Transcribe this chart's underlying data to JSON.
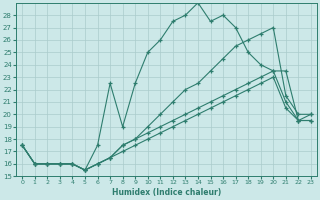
{
  "xlabel": "Humidex (Indice chaleur)",
  "background_color": "#cce8e8",
  "grid_color": "#aacccc",
  "line_color": "#2e7d6e",
  "xlim": [
    -0.5,
    23.5
  ],
  "ylim": [
    15,
    29
  ],
  "xticks": [
    0,
    1,
    2,
    3,
    4,
    5,
    6,
    7,
    8,
    9,
    10,
    11,
    12,
    13,
    14,
    15,
    16,
    17,
    18,
    19,
    20,
    21,
    22,
    23
  ],
  "yticks": [
    15,
    16,
    17,
    18,
    19,
    20,
    21,
    22,
    23,
    24,
    25,
    26,
    27,
    28
  ],
  "lines": [
    [
      17.5,
      16.0,
      16.0,
      16.0,
      16.0,
      15.5,
      17.5,
      22.5,
      19.0,
      22.5,
      25.0,
      26.0,
      27.5,
      28.0,
      29.0,
      27.5,
      28.0,
      27.0,
      25.0,
      24.0,
      23.5,
      23.5,
      19.5,
      20.0
    ],
    [
      17.5,
      16.0,
      16.0,
      16.0,
      16.0,
      15.5,
      16.0,
      16.5,
      17.5,
      18.0,
      19.0,
      20.0,
      21.0,
      22.0,
      22.5,
      23.5,
      24.5,
      25.5,
      26.0,
      26.5,
      27.0,
      21.5,
      20.0,
      20.0
    ],
    [
      17.5,
      16.0,
      16.0,
      16.0,
      16.0,
      15.5,
      16.0,
      16.5,
      17.5,
      18.0,
      18.5,
      19.0,
      19.5,
      20.0,
      20.5,
      21.0,
      21.5,
      22.0,
      22.5,
      23.0,
      23.5,
      21.0,
      19.5,
      19.5
    ],
    [
      17.5,
      16.0,
      16.0,
      16.0,
      16.0,
      15.5,
      16.0,
      16.5,
      17.0,
      17.5,
      18.0,
      18.5,
      19.0,
      19.5,
      20.0,
      20.5,
      21.0,
      21.5,
      22.0,
      22.5,
      23.0,
      20.5,
      19.5,
      19.5
    ]
  ]
}
